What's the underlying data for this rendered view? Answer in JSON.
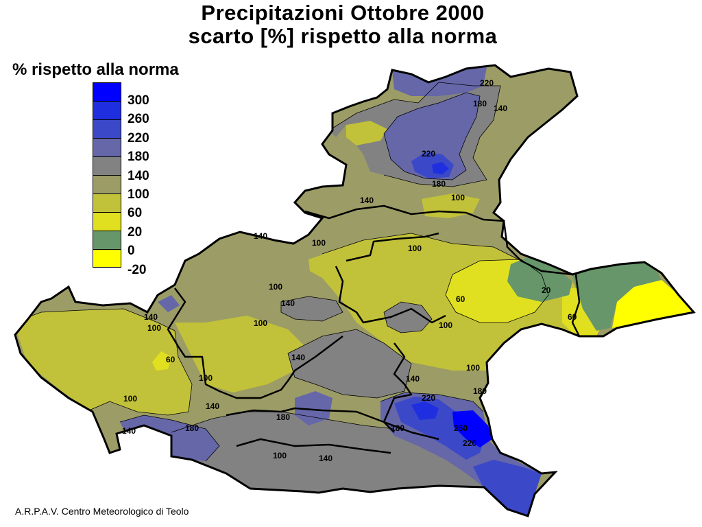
{
  "title": {
    "line1": "Precipitazioni Ottobre 2000",
    "line2": "scarto [%] rispetto alla norma"
  },
  "legend": {
    "title": "% rispetto alla norma",
    "classes": [
      {
        "color": "#0000ff"
      },
      {
        "color": "#1f2fe0"
      },
      {
        "color": "#3b48c8"
      },
      {
        "color": "#6567a8"
      },
      {
        "color": "#828282"
      },
      {
        "color": "#9c9c66"
      },
      {
        "color": "#c2c23a"
      },
      {
        "color": "#e0e020"
      },
      {
        "color": "#66966a"
      },
      {
        "color": "#ffff00"
      }
    ],
    "labels": [
      "300",
      "260",
      "220",
      "180",
      "140",
      "100",
      "60",
      "20",
      "0",
      "-20"
    ]
  },
  "contour_labels": [
    "220",
    "180",
    "140",
    "220",
    "180",
    "140",
    "100",
    "140",
    "100",
    "100",
    "100",
    "140",
    "100",
    "60",
    "20",
    "60",
    "140",
    "100",
    "100",
    "140",
    "60",
    "100",
    "140",
    "180",
    "220",
    "260",
    "220",
    "180",
    "140",
    "100",
    "180",
    "140",
    "100",
    "180",
    "140",
    "100"
  ],
  "credit": "A.R.P.A.V. Centro Meteorologico di Teolo"
}
